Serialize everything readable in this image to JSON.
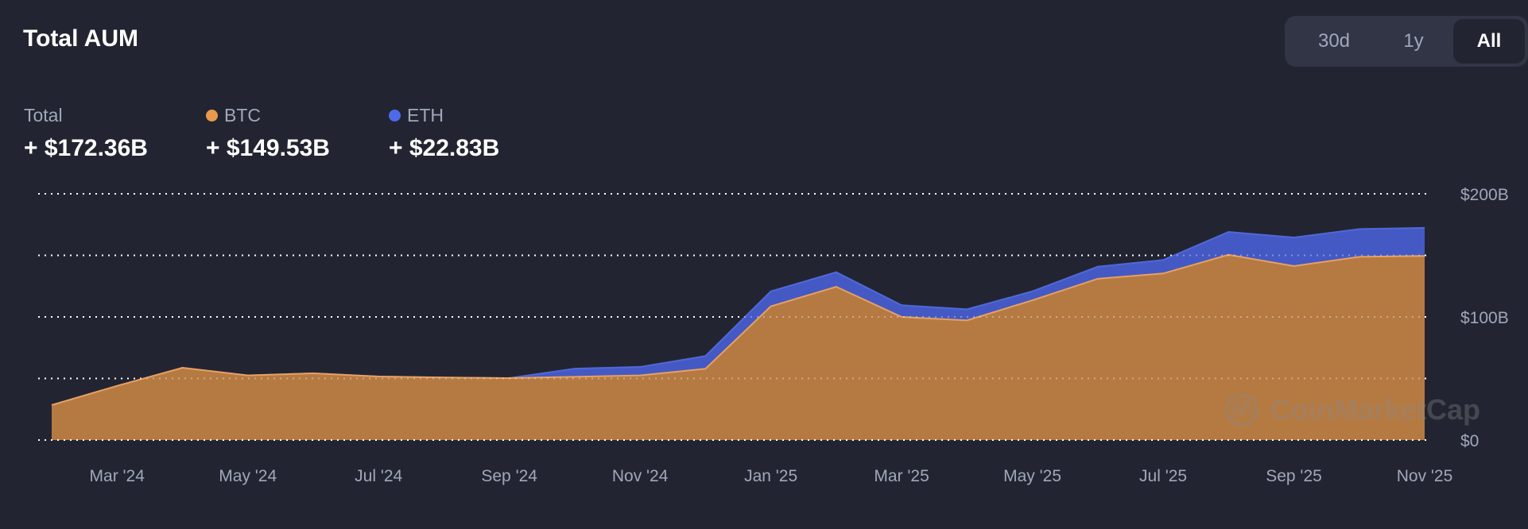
{
  "header": {
    "title": "Total AUM",
    "ranges": [
      {
        "label": "30d",
        "active": false
      },
      {
        "label": "1y",
        "active": false
      },
      {
        "label": "All",
        "active": true
      }
    ]
  },
  "summary": [
    {
      "label": "Total",
      "value": "+ $172.36B",
      "color": null
    },
    {
      "label": "BTC",
      "value": "+ $149.53B",
      "color": "#E8994C"
    },
    {
      "label": "ETH",
      "value": "+ $22.83B",
      "color": "#4F6AE8"
    }
  ],
  "watermark": "CoinMarketCap",
  "colors": {
    "btc_fill": "#B57A42",
    "btc_line": "#E8A060",
    "eth_fill": "#4459C4",
    "eth_line": "#5068D8",
    "grid": "#FFFFFF",
    "axis_text": "#A1A7BB",
    "background": "#222531"
  },
  "chart_data": {
    "type": "area",
    "stacked": true,
    "title": "Total AUM",
    "x": [
      "Feb '24",
      "Mar '24",
      "Apr '24",
      "May '24",
      "Jun '24",
      "Jul '24",
      "Aug '24",
      "Sep '24",
      "Oct '24",
      "Nov '24",
      "Dec '24",
      "Jan '25",
      "Feb '25",
      "Mar '25",
      "Apr '25",
      "May '25",
      "Jun '25",
      "Jul '25",
      "Aug '25",
      "Sep '25",
      "Oct '25",
      "Nov '25"
    ],
    "x_tick_labels": [
      "Mar '24",
      "May '24",
      "Jul '24",
      "Sep '24",
      "Nov '24",
      "Jan '25",
      "Mar '25",
      "May '25",
      "Jul '25",
      "Sep '25",
      "Nov '25"
    ],
    "series": [
      {
        "name": "BTC",
        "values": [
          28.4,
          44,
          58.7,
          52.5,
          54.2,
          51.6,
          50.8,
          50.3,
          51.4,
          52.5,
          57.9,
          108.6,
          124.5,
          100.0,
          97.2,
          113.5,
          131.0,
          135.3,
          150.5,
          141.3,
          148.8,
          149.53
        ]
      },
      {
        "name": "ETH",
        "values": [
          0,
          0,
          0,
          0,
          0,
          0,
          0,
          0,
          6.6,
          6.9,
          10.3,
          12.2,
          11.8,
          9.5,
          9.0,
          7.3,
          9.8,
          10.9,
          18.5,
          23.2,
          22.6,
          22.83
        ]
      }
    ],
    "y_tick_labels": [
      "$0",
      "$100B",
      "$200B"
    ],
    "y_gridlines": [
      0,
      50,
      100,
      150,
      200
    ],
    "ylim": [
      0,
      200
    ],
    "xlabel": "",
    "ylabel": "",
    "grid": true,
    "legend": "top-left"
  }
}
